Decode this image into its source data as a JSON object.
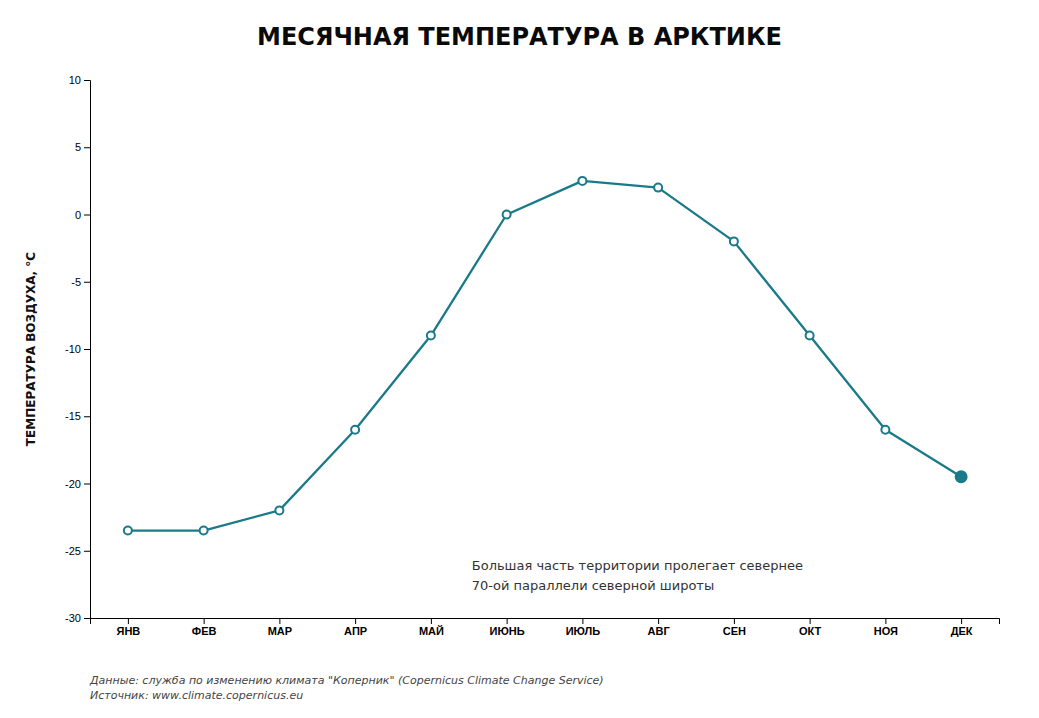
{
  "chart_data": {
    "type": "line",
    "title": "МЕСЯЧНАЯ ТЕМПЕРАТУРА В АРКТИКЕ",
    "ylabel": "ТЕМПЕРАТУРА ВОЗДУХА, °С",
    "categories": [
      "ЯНВ",
      "ФЕВ",
      "МАР",
      "АПР",
      "МАЙ",
      "ИЮНЬ",
      "ИЮЛЬ",
      "АВГ",
      "СЕН",
      "ОКТ",
      "НОЯ",
      "ДЕК"
    ],
    "values": [
      -23.5,
      -23.5,
      -22.0,
      -16.0,
      -9.0,
      0.0,
      2.5,
      2.0,
      -2.0,
      -9.0,
      -16.0,
      -19.5
    ],
    "color": "#1a7a8a",
    "marker": "circle",
    "line_style": "solid",
    "ylim": [
      -30,
      10
    ],
    "yticks": [
      -30,
      -25,
      -20,
      -15,
      -10,
      -5,
      0,
      5,
      10
    ],
    "grid": false,
    "annotations": [
      "Большая часть территории пролегает севернее\n70-ой параллели северной широты"
    ],
    "source": "Данные: служба по изменению климата \"Коперник\" (Copernicus Climate Change Service)\nИсточник: www.climate.copernicus.eu"
  }
}
